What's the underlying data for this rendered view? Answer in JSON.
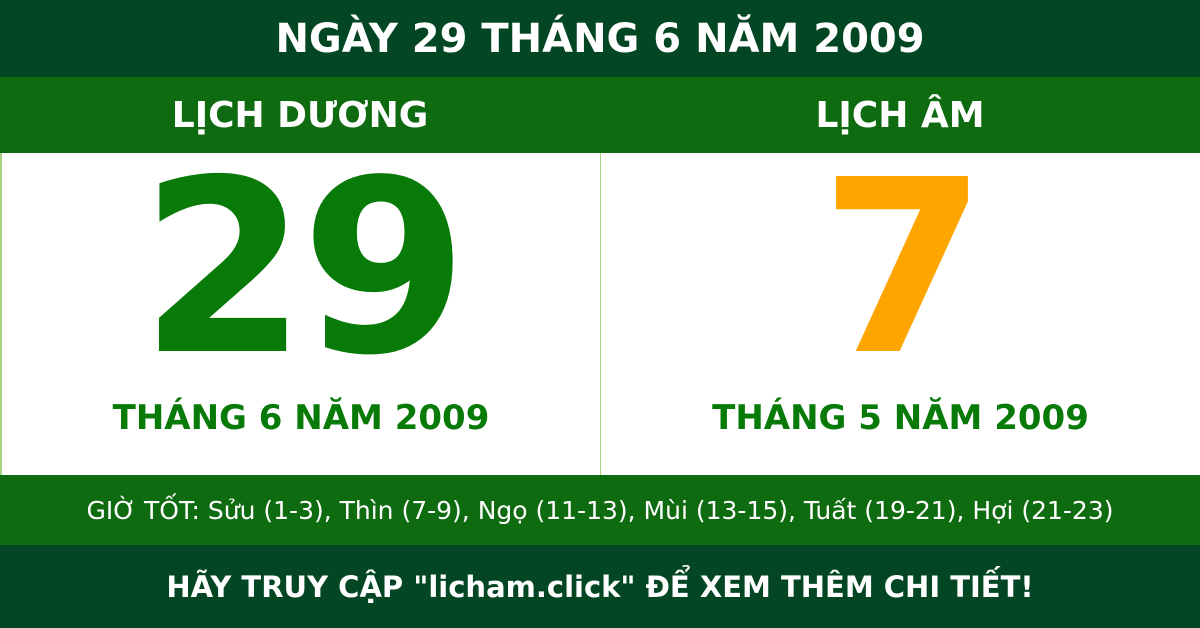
{
  "title": "NGÀY 29 THÁNG 6 NĂM 2009",
  "solar": {
    "header": "LỊCH DƯƠNG",
    "day": "29",
    "month_year": "THÁNG 6 NĂM 2009",
    "color": "#077a07"
  },
  "lunar": {
    "header": "LỊCH ÂM",
    "day": "7",
    "month_year": "THÁNG 5 NĂM 2009",
    "color": "#ffa500"
  },
  "good_hours": "GIỜ TỐT: Sửu (1-3), Thìn (7-9), Ngọ (11-13), Mùi (13-15), Tuất (19-21), Hợi (21-23)",
  "footer": "HÃY TRUY CẬP \"licham.click\" ĐỂ XEM THÊM CHI TIẾT!"
}
